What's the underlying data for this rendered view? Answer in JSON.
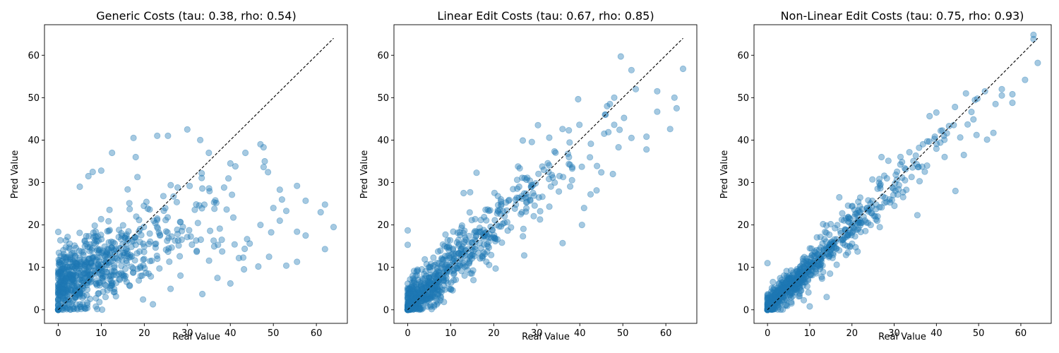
{
  "figure": {
    "background": "#ffffff",
    "point_color": "#1f77b4",
    "point_opacity": 0.4,
    "line_color": "#000000"
  },
  "chart_data": [
    {
      "type": "scatter",
      "title": "Generic Costs (tau: 0.38, rho: 0.54)",
      "xlabel": "Real Value",
      "ylabel": "Pred Value",
      "xlim": [
        -3.2,
        67.2
      ],
      "ylim": [
        -3.2,
        67.2
      ],
      "xticks": [
        0,
        10,
        20,
        30,
        40,
        50,
        60
      ],
      "yticks": [
        0,
        10,
        20,
        30,
        40,
        50,
        60
      ],
      "reference_line": {
        "x": [
          0,
          64
        ],
        "y": [
          0,
          64
        ],
        "style": "dashed",
        "label": ""
      },
      "grid": false,
      "correlation": {
        "tau": 0.38,
        "rho": 0.54
      },
      "model": {
        "slope": 0.45,
        "intercept": 6.0,
        "noise_sd": 6.5,
        "n": 720,
        "seed": 11
      },
      "points": [
        {
          "x": 17.5,
          "y": 40.5
        },
        {
          "x": 23,
          "y": 41
        },
        {
          "x": 25.5,
          "y": 41
        },
        {
          "x": 30,
          "y": 42.5
        },
        {
          "x": 33,
          "y": 40
        },
        {
          "x": 12.5,
          "y": 37
        },
        {
          "x": 18,
          "y": 36
        },
        {
          "x": 35,
          "y": 37
        },
        {
          "x": 43.5,
          "y": 37
        },
        {
          "x": 47,
          "y": 39
        },
        {
          "x": 48,
          "y": 35
        },
        {
          "x": 40,
          "y": 34.5
        },
        {
          "x": 22,
          "y": 1.3
        },
        {
          "x": 11,
          "y": 3
        },
        {
          "x": 33.5,
          "y": 3.7
        },
        {
          "x": 37,
          "y": 7.5
        },
        {
          "x": 40,
          "y": 6.2
        },
        {
          "x": 46.5,
          "y": 10.2
        },
        {
          "x": 49,
          "y": 12.5
        },
        {
          "x": 53,
          "y": 10.4
        },
        {
          "x": 55.5,
          "y": 11.3
        },
        {
          "x": 55.5,
          "y": 18.4
        },
        {
          "x": 57.5,
          "y": 17.5
        },
        {
          "x": 62,
          "y": 14.3
        },
        {
          "x": 64,
          "y": 19.5
        },
        {
          "x": 61,
          "y": 23
        },
        {
          "x": 62,
          "y": 24.8
        },
        {
          "x": 57.5,
          "y": 25.7
        },
        {
          "x": 55.5,
          "y": 29.2
        },
        {
          "x": 52,
          "y": 26
        },
        {
          "x": 51.5,
          "y": 28.3
        },
        {
          "x": 50,
          "y": 24
        },
        {
          "x": 53,
          "y": 23.3
        },
        {
          "x": 51.5,
          "y": 21
        },
        {
          "x": 47,
          "y": 20
        },
        {
          "x": 43,
          "y": 12.3
        },
        {
          "x": 42,
          "y": 12.2
        },
        {
          "x": 41,
          "y": 15.4
        },
        {
          "x": 44.5,
          "y": 15.6
        },
        {
          "x": 38,
          "y": 16.5
        },
        {
          "x": 8,
          "y": 32.5
        },
        {
          "x": 7,
          "y": 31.5
        },
        {
          "x": 10,
          "y": 32.8
        },
        {
          "x": 5,
          "y": 29
        }
      ]
    },
    {
      "type": "scatter",
      "title": "Linear Edit Costs (tau: 0.67, rho: 0.85)",
      "xlabel": "Real Value",
      "ylabel": "Pred Value",
      "xlim": [
        -3.2,
        67.2
      ],
      "ylim": [
        -3.2,
        67.2
      ],
      "xticks": [
        0,
        10,
        20,
        30,
        40,
        50,
        60
      ],
      "yticks": [
        0,
        10,
        20,
        30,
        40,
        50,
        60
      ],
      "reference_line": {
        "x": [
          0,
          64
        ],
        "y": [
          0,
          64
        ],
        "style": "dashed",
        "label": ""
      },
      "grid": false,
      "correlation": {
        "tau": 0.67,
        "rho": 0.85
      },
      "model": {
        "slope": 0.9,
        "intercept": 1.0,
        "noise_sd": 4.5,
        "n": 720,
        "seed": 23
      },
      "points": [
        {
          "x": 52,
          "y": 56.5
        },
        {
          "x": 64,
          "y": 56.8
        },
        {
          "x": 58,
          "y": 51.5
        },
        {
          "x": 62,
          "y": 50
        },
        {
          "x": 62.5,
          "y": 47.5
        },
        {
          "x": 58,
          "y": 46.7
        },
        {
          "x": 61,
          "y": 42.6
        },
        {
          "x": 55.5,
          "y": 40.8
        },
        {
          "x": 55.5,
          "y": 37.8
        },
        {
          "x": 52,
          "y": 40.5
        },
        {
          "x": 49,
          "y": 38.3
        },
        {
          "x": 46,
          "y": 46
        },
        {
          "x": 41,
          "y": 24
        },
        {
          "x": 40.5,
          "y": 20
        },
        {
          "x": 36,
          "y": 15.7
        },
        {
          "x": 42.5,
          "y": 27.2
        },
        {
          "x": 0,
          "y": 18.7
        },
        {
          "x": 0,
          "y": 15.3
        },
        {
          "x": 16,
          "y": 32.3
        },
        {
          "x": 14.5,
          "y": 27.7
        },
        {
          "x": 13,
          "y": 27.5
        },
        {
          "x": 45,
          "y": 32.4
        },
        {
          "x": 44,
          "y": 33.9
        },
        {
          "x": 48,
          "y": 43.6
        },
        {
          "x": 53,
          "y": 52
        },
        {
          "x": 48,
          "y": 50
        },
        {
          "x": 47,
          "y": 48.5
        }
      ]
    },
    {
      "type": "scatter",
      "title": "Non-Linear Edit Costs (tau: 0.75, rho: 0.93)",
      "xlabel": "Real Value",
      "ylabel": "Pred Value",
      "xlim": [
        -3.2,
        67.2
      ],
      "ylim": [
        -3.2,
        67.2
      ],
      "xticks": [
        0,
        10,
        20,
        30,
        40,
        50,
        60
      ],
      "yticks": [
        0,
        10,
        20,
        30,
        40,
        50,
        60
      ],
      "reference_line": {
        "x": [
          0,
          64
        ],
        "y": [
          0,
          64
        ],
        "style": "dashed",
        "label": ""
      },
      "grid": false,
      "correlation": {
        "tau": 0.75,
        "rho": 0.93
      },
      "model": {
        "slope": 0.97,
        "intercept": 0.5,
        "noise_sd": 3.0,
        "n": 720,
        "seed": 37
      },
      "points": [
        {
          "x": 63,
          "y": 64.8
        },
        {
          "x": 63,
          "y": 63.8
        },
        {
          "x": 64,
          "y": 58.2
        },
        {
          "x": 61,
          "y": 54.2
        },
        {
          "x": 58,
          "y": 50.8
        },
        {
          "x": 58,
          "y": 48.8
        },
        {
          "x": 55.5,
          "y": 52
        },
        {
          "x": 55.5,
          "y": 50.5
        },
        {
          "x": 54,
          "y": 48.5
        },
        {
          "x": 53.5,
          "y": 41.7
        },
        {
          "x": 52,
          "y": 40.1
        },
        {
          "x": 51.5,
          "y": 51.5
        },
        {
          "x": 47,
          "y": 51
        },
        {
          "x": 46.5,
          "y": 36.5
        },
        {
          "x": 44.5,
          "y": 28
        },
        {
          "x": 40,
          "y": 46.5
        },
        {
          "x": 35.5,
          "y": 22.3
        },
        {
          "x": 29,
          "y": 25.3
        },
        {
          "x": 27,
          "y": 36
        },
        {
          "x": 17,
          "y": 26.5
        },
        {
          "x": 49.5,
          "y": 41.2
        },
        {
          "x": 10,
          "y": 0.8
        },
        {
          "x": 14,
          "y": 3
        },
        {
          "x": 0,
          "y": 11
        }
      ]
    }
  ]
}
